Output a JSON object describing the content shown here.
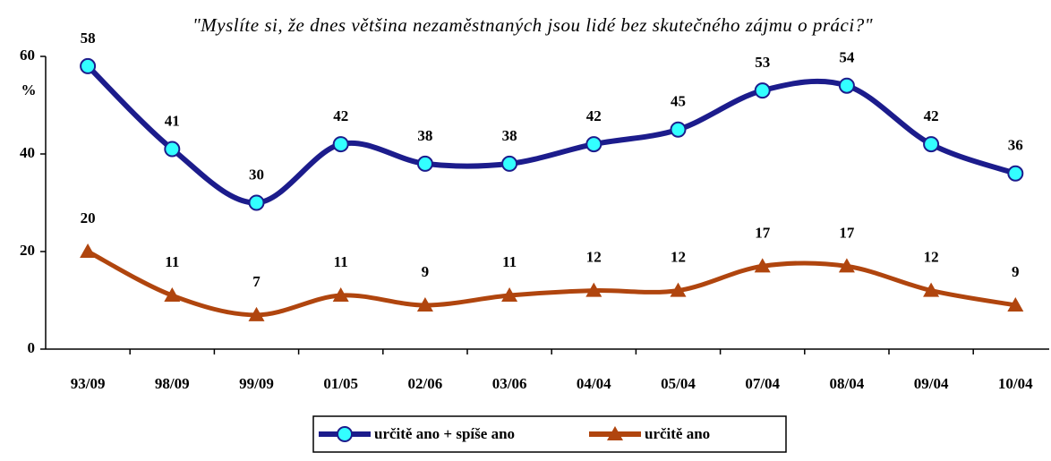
{
  "chart_data": {
    "type": "line",
    "title": "\"Myslíte si, že dnes většina nezaměstnaných jsou lidé bez skutečného zájmu o práci?\"",
    "y_label": "%",
    "categories": [
      "93/09",
      "98/09",
      "99/09",
      "01/05",
      "02/06",
      "03/06",
      "04/04",
      "05/04",
      "07/04",
      "08/04",
      "09/04",
      "10/04"
    ],
    "series": [
      {
        "name": "určitě ano + spíše ano",
        "color": "#1c1c8c",
        "marker": "circle",
        "marker_color": "#33ffff",
        "values": [
          58,
          41,
          30,
          42,
          38,
          38,
          42,
          45,
          53,
          54,
          42,
          36
        ]
      },
      {
        "name": "určitě ano",
        "color": "#b0450e",
        "marker": "triangle",
        "marker_color": "#b0450e",
        "values": [
          20,
          11,
          7,
          11,
          9,
          11,
          12,
          12,
          17,
          17,
          12,
          9
        ]
      }
    ],
    "ylim": [
      0,
      60
    ],
    "yticks": [
      0,
      20,
      40,
      60
    ],
    "grid": false,
    "legend": "bottom"
  }
}
